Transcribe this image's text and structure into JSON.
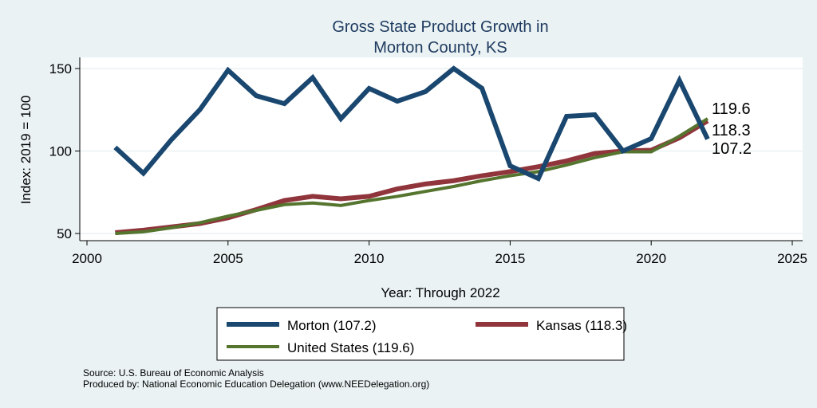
{
  "chart_data": {
    "type": "line",
    "title": [
      "Gross State Product Growth in",
      "Morton County, KS"
    ],
    "xlabel": "Year: Through 2022",
    "ylabel": "Index: 2019 = 100",
    "xlim": [
      2000,
      2025
    ],
    "ylim": [
      50,
      150
    ],
    "xticks": [
      "2000",
      "2005",
      "2010",
      "2015",
      "2020",
      "2025"
    ],
    "yticks": [
      "50",
      "100",
      "150"
    ],
    "grid": true,
    "x": [
      2001,
      2002,
      2003,
      2004,
      2005,
      2006,
      2007,
      2008,
      2009,
      2010,
      2011,
      2012,
      2013,
      2014,
      2015,
      2016,
      2017,
      2018,
      2019,
      2020,
      2021,
      2022
    ],
    "series": [
      {
        "name": "Morton",
        "legend": "Morton  (107.2)",
        "color": "#1a476f",
        "end_label": "107.2",
        "values": [
          102.2,
          86.5,
          107,
          125,
          149,
          133.5,
          128.7,
          144.5,
          119.6,
          137.9,
          130.2,
          136,
          150,
          138,
          91,
          83.3,
          121,
          122,
          100,
          107.5,
          142.8,
          107.2
        ]
      },
      {
        "name": "Kansas",
        "legend": "Kansas (118.3)",
        "color": "#90353b",
        "end_label": "118.3",
        "values": [
          50.5,
          52,
          54,
          56,
          59.5,
          64.5,
          70,
          72.5,
          71,
          72.5,
          77,
          80,
          82,
          85,
          87.5,
          90.5,
          94,
          98.5,
          100,
          100.5,
          108,
          118.3
        ]
      },
      {
        "name": "United States",
        "legend": "United States (119.6)",
        "color": "#55752f",
        "end_label": "119.6",
        "values": [
          50,
          51,
          53.5,
          56.5,
          60.5,
          64,
          67.5,
          68.5,
          67,
          70,
          72.5,
          75.5,
          78.5,
          82,
          85,
          87.5,
          91.5,
          96,
          99.5,
          99.5,
          109,
          119.6
        ]
      }
    ],
    "legend_placement": "bottom",
    "notes": [
      "Source: U.S. Bureau of Economic Analysis",
      "Produced by: National Economic Education Delegation (www.NEEDelegation.org)"
    ]
  }
}
